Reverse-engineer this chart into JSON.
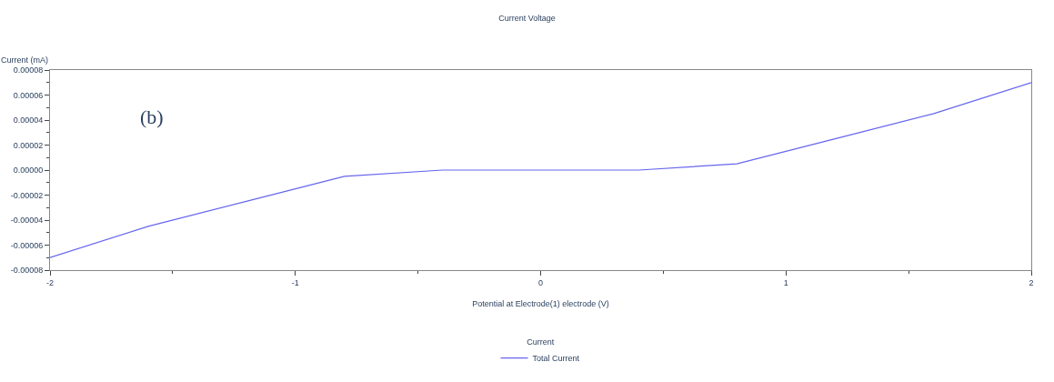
{
  "chart_data": {
    "type": "line",
    "title": "Current Voltage",
    "xlabel": "Potential at Electrode(1) electrode (V)",
    "ylabel": "Current (mA)",
    "legend_title": "Current",
    "x": [
      -2,
      -1.6,
      -1.2,
      -0.8,
      -0.4,
      0,
      0.4,
      0.8,
      1.2,
      1.6,
      2
    ],
    "series": [
      {
        "name": "Total Current",
        "color": "#6666ee",
        "values": [
          -7e-05,
          -4.5e-05,
          -2.5e-05,
          -5e-06,
          0,
          0,
          0,
          5e-06,
          2.5e-05,
          4.5e-05,
          7e-05
        ]
      }
    ],
    "xlim": [
      -2,
      2
    ],
    "xticks": [
      -2,
      -1,
      0,
      1,
      2
    ],
    "ylim": [
      -8e-05,
      8e-05
    ],
    "yticks": [
      {
        "value": -8e-05,
        "label": "-0.00008"
      },
      {
        "value": -6e-05,
        "label": "-0.00006"
      },
      {
        "value": -4e-05,
        "label": "-0.00004"
      },
      {
        "value": -2e-05,
        "label": "-0.00002"
      },
      {
        "value": 0,
        "label": "0.00000"
      },
      {
        "value": 2e-05,
        "label": "0.00002"
      },
      {
        "value": 4e-05,
        "label": "0.00004"
      },
      {
        "value": 6e-05,
        "label": "0.00006"
      },
      {
        "value": 8e-05,
        "label": "0.00008"
      }
    ],
    "annotations": [
      "(b)"
    ],
    "legend": "bottom",
    "marker": "none",
    "line_style": "solid"
  }
}
